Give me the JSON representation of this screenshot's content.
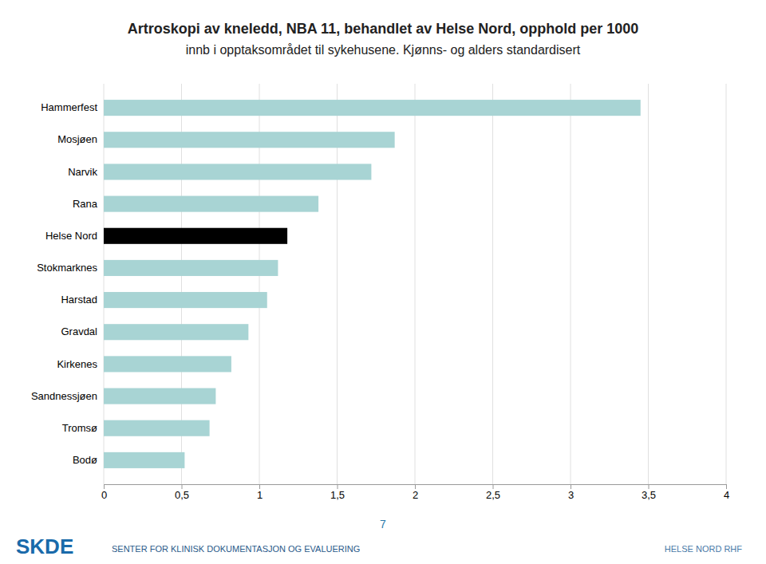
{
  "chart_data": {
    "type": "bar",
    "orientation": "horizontal",
    "title": "Artroskopi av kneledd, NBA 11, behandlet av Helse Nord, opphold per 1000",
    "subtitle": "innb i opptaksområdet til sykehusene. Kjønns- og alders standardisert",
    "categories": [
      "Hammerfest",
      "Mosjøen",
      "Narvik",
      "Rana",
      "Helse Nord",
      "Stokmarknes",
      "Harstad",
      "Gravdal",
      "Kirkenes",
      "Sandnessjøen",
      "Tromsø",
      "Bodø"
    ],
    "values": [
      3.45,
      1.87,
      1.72,
      1.38,
      1.18,
      1.12,
      1.05,
      0.93,
      0.82,
      0.72,
      0.68,
      0.52
    ],
    "colors": [
      "#a8d4d4",
      "#a8d4d4",
      "#a8d4d4",
      "#a8d4d4",
      "#000000",
      "#a8d4d4",
      "#a8d4d4",
      "#a8d4d4",
      "#a8d4d4",
      "#a8d4d4",
      "#a8d4d4",
      "#a8d4d4"
    ],
    "xlim": [
      0,
      4
    ],
    "xticks": [
      0,
      {
        "value": 0.5,
        "label": "0,5"
      },
      1,
      {
        "value": 1.5,
        "label": "1,5"
      },
      2,
      {
        "value": 2.5,
        "label": "2,5"
      },
      3,
      {
        "value": 3.5,
        "label": "3,5"
      },
      4
    ],
    "grid": true,
    "annotations": [
      "SENTER FOR KLINISK DOKUMENTASJON OG EVALUERING",
      "HELSE NORD RHF",
      "7",
      "SKDE"
    ]
  }
}
